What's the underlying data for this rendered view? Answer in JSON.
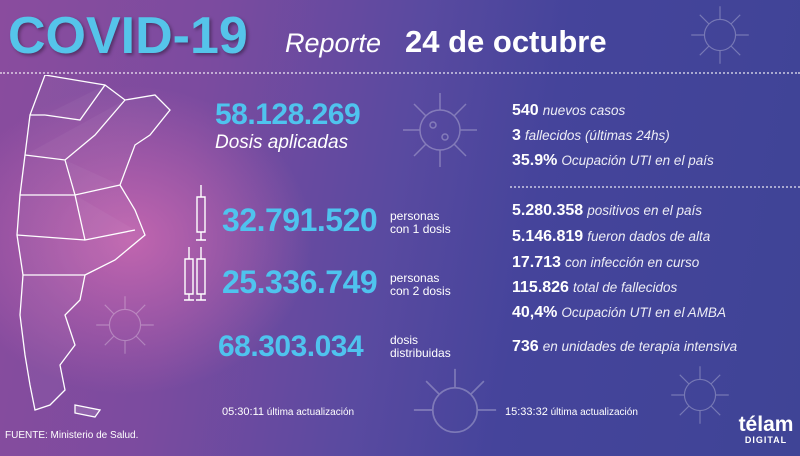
{
  "header": {
    "title": "COVID-19",
    "subtitle": "Reporte",
    "date": "24 de octubre"
  },
  "vaccination": {
    "applied": {
      "value": "58.128.269",
      "label": "Dosis aplicadas"
    },
    "one_dose": {
      "value": "32.791.520",
      "label_line1": "personas",
      "label_line2": "con 1 dosis"
    },
    "two_doses": {
      "value": "25.336.749",
      "label_line1": "personas",
      "label_line2": "con 2 dosis"
    },
    "distributed": {
      "value": "68.303.034",
      "label_line1": "dosis",
      "label_line2": "distribuidas"
    },
    "update": {
      "time": "05:30:11",
      "label": "última actualización"
    }
  },
  "daily": [
    {
      "value": "540",
      "label": "nuevos casos"
    },
    {
      "value": "3",
      "label": "fallecidos (últimas 24hs)"
    },
    {
      "value": "35.9%",
      "label": "Ocupación UTI en el país"
    }
  ],
  "totals": [
    {
      "value": "5.280.358",
      "label": "positivos en el país"
    },
    {
      "value": "5.146.819",
      "label": "fueron dados de alta"
    },
    {
      "value": "17.713",
      "label": "con infección en curso"
    },
    {
      "value": "115.826",
      "label": "total de fallecidos"
    },
    {
      "value": "40,4%",
      "label": "Ocupación UTI en el AMBA"
    },
    {
      "value": "736",
      "label": "en unidades de terapia intensiva"
    }
  ],
  "cases_update": {
    "time": "15:33:32",
    "label": "última actualización"
  },
  "footer": {
    "source": "FUENTE: Ministerio de Salud.",
    "logo": "télam",
    "logo_sub": "DIGITAL"
  },
  "colors": {
    "accent": "#4fc3ee",
    "bg_left": "#8a4c9e",
    "bg_right": "#3f4496"
  }
}
